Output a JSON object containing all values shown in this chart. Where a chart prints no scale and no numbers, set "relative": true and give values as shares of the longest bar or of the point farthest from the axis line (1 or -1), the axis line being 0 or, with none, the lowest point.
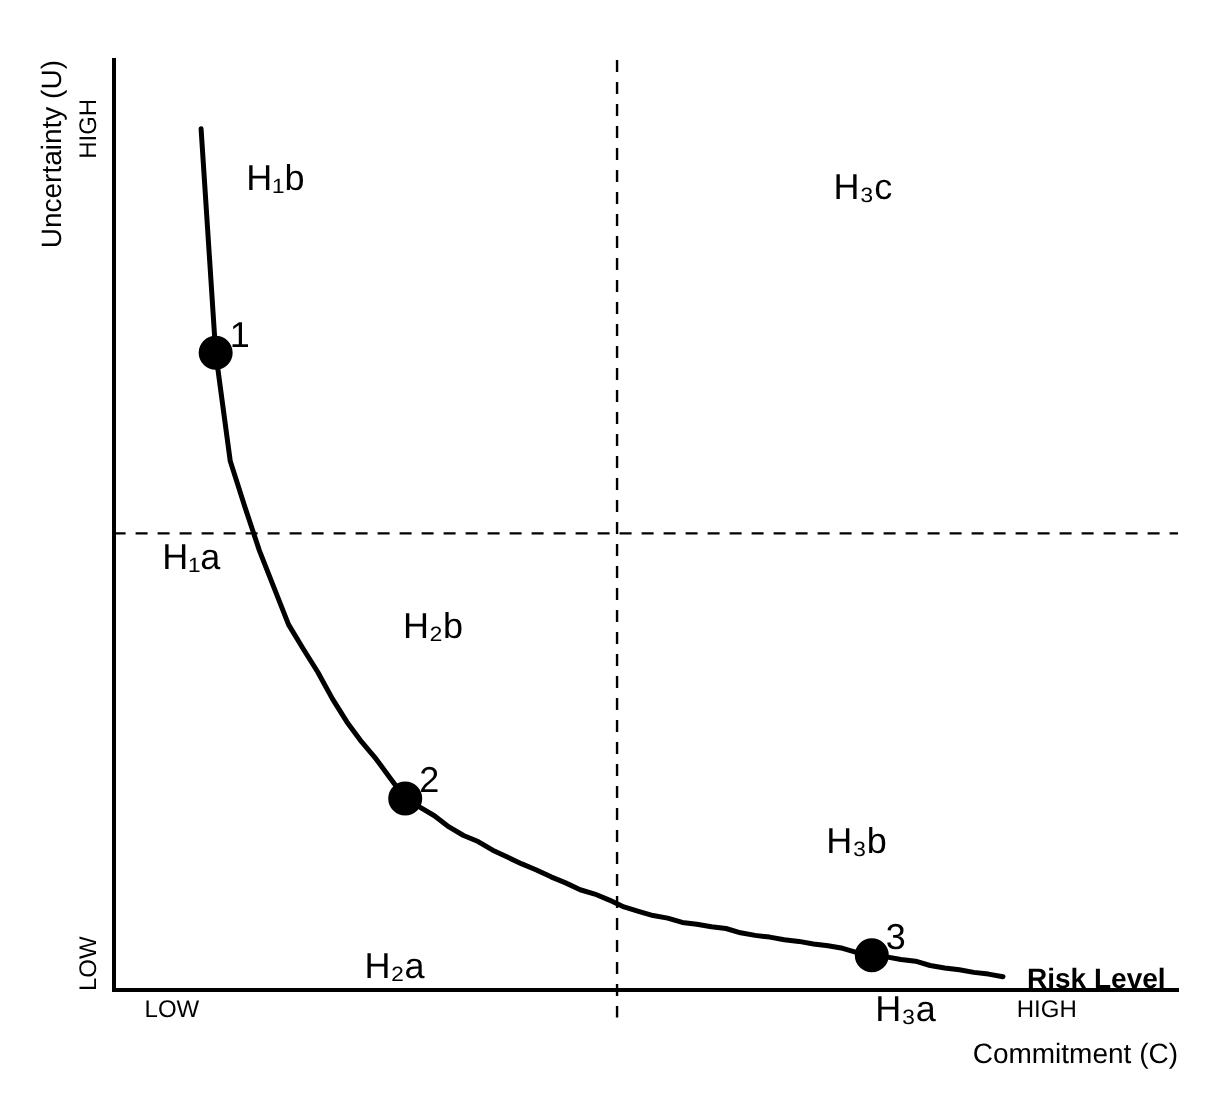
{
  "chart_data": {
    "type": "line",
    "relative": true,
    "xlabel": "Commitment (C)",
    "ylabel": "Uncertainty (U)",
    "categories": [
      null,
      null,
      null,
      null,
      "LOW",
      null,
      null,
      null,
      null,
      null,
      null,
      null,
      null,
      null,
      null,
      null,
      null,
      null,
      null,
      null,
      null,
      null,
      null,
      null,
      null,
      null,
      null,
      null,
      null,
      null,
      null,
      null,
      null,
      null,
      null,
      null,
      null,
      null,
      null,
      null,
      null,
      null,
      null,
      null,
      null,
      null,
      null,
      null,
      null,
      null,
      null,
      null,
      null,
      null,
      null,
      null,
      null,
      null,
      null,
      null,
      null,
      null,
      null,
      null,
      "HIGH",
      null,
      null,
      null,
      null,
      null,
      null,
      null,
      null,
      null
    ],
    "grid": false,
    "legend": false,
    "series": [
      {
        "name": "Risk Level",
        "color": "#000000",
        "marker": "none",
        "values": [
          null,
          null,
          null,
          null,
          null,
          null,
          1.0,
          0.74,
          0.614,
          0.561,
          0.51,
          0.467,
          0.424,
          0.396,
          0.369,
          0.338,
          0.311,
          0.288,
          0.268,
          0.245,
          0.222,
          0.212,
          0.202,
          0.189,
          0.179,
          0.172,
          0.162,
          0.154,
          0.146,
          0.139,
          0.131,
          0.124,
          0.116,
          0.111,
          0.104,
          0.096,
          0.091,
          0.086,
          0.083,
          0.078,
          0.076,
          0.073,
          0.071,
          0.066,
          0.063,
          0.061,
          0.058,
          0.056,
          0.053,
          0.051,
          0.048,
          0.043,
          0.04,
          0.038,
          0.035,
          0.033,
          0.028,
          0.025,
          0.023,
          0.02,
          0.018,
          0.015,
          null,
          null,
          null,
          null,
          null,
          null,
          null,
          null,
          null,
          null,
          null,
          null
        ]
      },
      {
        "type": "scatter",
        "color": "#000000",
        "marker": "circle",
        "values": [
          null,
          null,
          null,
          null,
          null,
          null,
          null,
          0.74,
          null,
          null,
          null,
          null,
          null,
          null,
          null,
          null,
          null,
          null,
          null,
          null,
          0.222,
          null,
          null,
          null,
          null,
          null,
          null,
          null,
          null,
          null,
          null,
          null,
          null,
          null,
          null,
          null,
          null,
          null,
          null,
          null,
          null,
          null,
          null,
          null,
          null,
          null,
          null,
          null,
          null,
          null,
          null,
          null,
          0.04,
          null,
          null,
          null,
          null,
          null,
          null,
          null,
          null,
          null,
          null,
          null,
          null,
          null,
          null,
          null,
          null,
          null,
          null,
          null,
          null,
          null
        ]
      }
    ],
    "ref_lines": [
      {
        "axis": "y",
        "value": 0.53,
        "color": "#000000",
        "line_style": "dashed"
      }
    ],
    "annotations": [
      "1",
      "2",
      "3",
      "H₁b",
      "H₃c",
      "H₁a",
      "H₂b",
      "H₃b",
      "H₂a",
      "H₃a",
      "LOW",
      "HIGH"
    ]
  }
}
